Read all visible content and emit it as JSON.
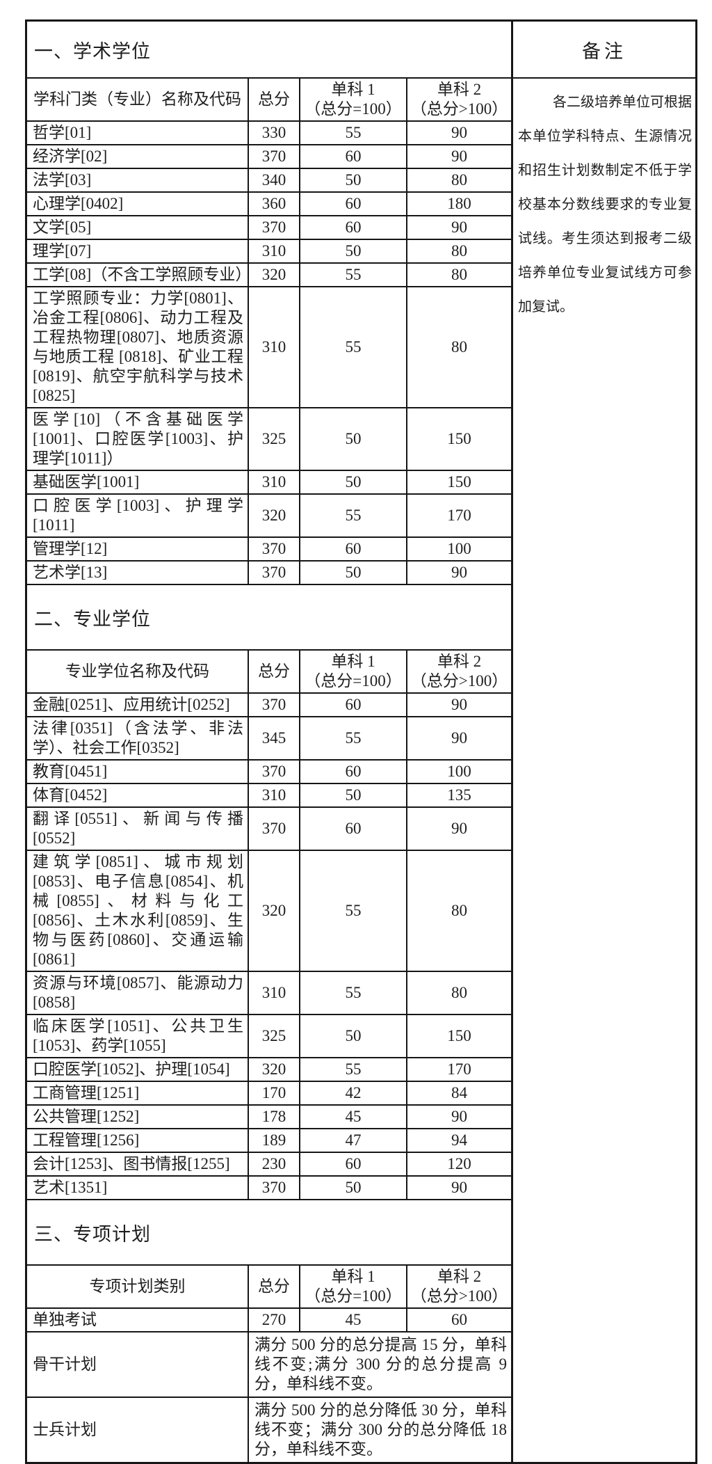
{
  "page": {
    "background": "#ffffff",
    "border_color": "#161616",
    "text_color": "#1e1e1e"
  },
  "remark": {
    "title": "备注",
    "body": "各二级培养单位可根据本单位学科特点、生源情况和招生计划数制定不低于学校基本分数线要求的专业复试线。考生须达到报考二级培养单位专业复试线方可参加复试。"
  },
  "sections": [
    {
      "title": "一、学术学位",
      "header": {
        "name": "学科门类（专业）名称及代码",
        "total": "总分",
        "sub1_line1": "单科 1",
        "sub1_line2": "（总分=100）",
        "sub2_line1": "单科 2",
        "sub2_line2": "（总分>100）"
      },
      "rows": [
        {
          "name": "哲学[01]",
          "total": "330",
          "sub1": "55",
          "sub2": "90"
        },
        {
          "name": "经济学[02]",
          "total": "370",
          "sub1": "60",
          "sub2": "90"
        },
        {
          "name": "法学[03]",
          "total": "340",
          "sub1": "50",
          "sub2": "80"
        },
        {
          "name": "心理学[0402]",
          "total": "360",
          "sub1": "60",
          "sub2": "180"
        },
        {
          "name": "文学[05]",
          "total": "370",
          "sub1": "60",
          "sub2": "90"
        },
        {
          "name": "理学[07]",
          "total": "310",
          "sub1": "50",
          "sub2": "80"
        },
        {
          "name": "工学[08]（不含工学照顾专业）",
          "total": "320",
          "sub1": "55",
          "sub2": "80"
        },
        {
          "name": "工学照顾专业：力学[0801]、冶金工程[0806]、动力工程及工程热物理[0807]、地质资源与地质工程 [0818]、矿业工程[0819]、航空宇航科学与技术[0825]",
          "total": "310",
          "sub1": "55",
          "sub2": "80"
        },
        {
          "name": "医学[10]（不含基础医学[1001]、口腔医学[1003]、护理学[1011]）",
          "total": "325",
          "sub1": "50",
          "sub2": "150"
        },
        {
          "name": "基础医学[1001]",
          "total": "310",
          "sub1": "50",
          "sub2": "150"
        },
        {
          "name": "口腔医学[1003]、护理学[1011]",
          "total": "320",
          "sub1": "55",
          "sub2": "170"
        },
        {
          "name": "管理学[12]",
          "total": "370",
          "sub1": "60",
          "sub2": "100"
        },
        {
          "name": "艺术学[13]",
          "total": "370",
          "sub1": "50",
          "sub2": "90"
        }
      ]
    },
    {
      "title": "二、专业学位",
      "header": {
        "name": "专业学位名称及代码",
        "total": "总分",
        "sub1_line1": "单科 1",
        "sub1_line2": "（总分=100）",
        "sub2_line1": "单科 2",
        "sub2_line2": "（总分>100）"
      },
      "rows": [
        {
          "name": "金融[0251]、应用统计[0252]",
          "total": "370",
          "sub1": "60",
          "sub2": "90"
        },
        {
          "name": "法律[0351]（含法学、非法学）、社会工作[0352]",
          "total": "345",
          "sub1": "55",
          "sub2": "90"
        },
        {
          "name": "教育[0451]",
          "total": "370",
          "sub1": "60",
          "sub2": "100"
        },
        {
          "name": "体育[0452]",
          "total": "310",
          "sub1": "50",
          "sub2": "135"
        },
        {
          "name": "翻译[0551]、新闻与传播[0552]",
          "total": "370",
          "sub1": "60",
          "sub2": "90"
        },
        {
          "name": "建筑学[0851]、城市规划[0853]、电子信息[0854]、机械[0855]、材料与化工[0856]、土木水利[0859]、生物与医药[0860]、交通运输[0861]",
          "total": "320",
          "sub1": "55",
          "sub2": "80"
        },
        {
          "name": "资源与环境[0857]、能源动力[0858]",
          "total": "310",
          "sub1": "55",
          "sub2": "80"
        },
        {
          "name": "临床医学[1051]、公共卫生[1053]、药学[1055]",
          "total": "325",
          "sub1": "50",
          "sub2": "150"
        },
        {
          "name": "口腔医学[1052]、护理[1054]",
          "total": "320",
          "sub1": "55",
          "sub2": "170"
        },
        {
          "name": "工商管理[1251]",
          "total": "170",
          "sub1": "42",
          "sub2": "84"
        },
        {
          "name": "公共管理[1252]",
          "total": "178",
          "sub1": "45",
          "sub2": "90"
        },
        {
          "name": "工程管理[1256]",
          "total": "189",
          "sub1": "47",
          "sub2": "94"
        },
        {
          "name": "会计[1253]、图书情报[1255]",
          "total": "230",
          "sub1": "60",
          "sub2": "120"
        },
        {
          "name": "艺术[1351]",
          "total": "370",
          "sub1": "50",
          "sub2": "90"
        }
      ]
    },
    {
      "title": "三、专项计划",
      "header": {
        "name": "专项计划类别",
        "total": "总分",
        "sub1_line1": "单科 1",
        "sub1_line2": "（总分=100）",
        "sub2_line1": "单科 2",
        "sub2_line2": "（总分>100）"
      },
      "rows": [
        {
          "name": "单独考试",
          "total": "270",
          "sub1": "45",
          "sub2": "60"
        }
      ],
      "note_rows": [
        {
          "name": "骨干计划",
          "note": "满分 500 分的总分提高 15 分，单科线不变;满分 300 分的总分提高 9 分，单科线不变。"
        },
        {
          "name": "士兵计划",
          "note": "满分 500 分的总分降低 30 分，单科线不变；满分 300 分的总分降低 18 分，单科线不变。"
        }
      ]
    }
  ]
}
